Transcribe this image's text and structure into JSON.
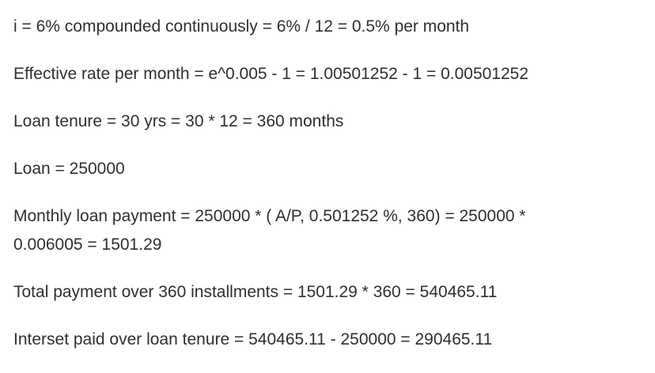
{
  "lines": [
    "i = 6% compounded continuously = 6% / 12 = 0.5% per month",
    "Effective rate per month = e^0.005 - 1 = 1.00501252 - 1 = 0.00501252",
    "Loan tenure = 30 yrs = 30 * 12 = 360 months",
    "Loan = 250000",
    "Monthly loan payment = 250000 * ( A/P, 0.501252 %, 360) = 250000 *",
    "0.006005 = 1501.29",
    "Total payment over 360 installments = 1501.29 * 360 = 540465.11",
    "Interset paid over loan tenure = 540465.11 - 250000 = 290465.11"
  ]
}
